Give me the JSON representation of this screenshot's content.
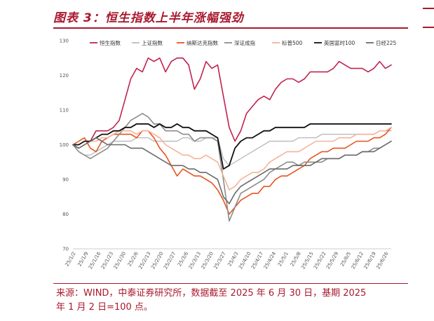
{
  "header": {
    "title": "图表 3：恒生指数上半年涨幅强劲"
  },
  "footer": {
    "source_line1": "来源：WIND，中泰证券研究所，数据截至 2025 年 6 月 30 日，基期 2025",
    "source_line2": "年 1 月 2 日=100 点。"
  },
  "chart_data": {
    "type": "line",
    "ylim": [
      70,
      130
    ],
    "yticks": [
      70,
      80,
      90,
      100,
      110,
      120,
      130
    ],
    "grid": false,
    "legend_position": "top",
    "x_tick_labels": [
      "25/1/2",
      "25/1/9",
      "25/1/16",
      "25/1/23",
      "25/1/30",
      "25/2/6",
      "25/2/13",
      "25/2/20",
      "25/2/27",
      "25/3/6",
      "25/3/13",
      "25/3/20",
      "25/3/27",
      "25/4/3",
      "25/4/10",
      "25/4/17",
      "25/4/24",
      "25/5/1",
      "25/5/8",
      "25/5/15",
      "25/5/22",
      "25/5/29",
      "25/6/5",
      "25/6/12",
      "25/6/19",
      "25/6/26"
    ],
    "series": [
      {
        "name": "恒生指数",
        "color": "#c0234e",
        "width": 1.6,
        "values": [
          100,
          99,
          100,
          101,
          104,
          104,
          104,
          105,
          107,
          113,
          119,
          122,
          121,
          125,
          124,
          125,
          121,
          124,
          125,
          125,
          123,
          116,
          119,
          124,
          122,
          123,
          114,
          105,
          101,
          104,
          109,
          111,
          113,
          114,
          113,
          116,
          118,
          119,
          119,
          118,
          119,
          121,
          121,
          121,
          121,
          122,
          124,
          123,
          122,
          122,
          122,
          121,
          122,
          124,
          122,
          123
        ]
      },
      {
        "name": "上证指数",
        "color": "#bdbdbd",
        "width": 1.4,
        "values": [
          100,
          98,
          97,
          97,
          98,
          99,
          100,
          101,
          101,
          101,
          101,
          102,
          102,
          102,
          101,
          101,
          101,
          101,
          101,
          102,
          102,
          101,
          101,
          102,
          102,
          102,
          96,
          94,
          95,
          96,
          97,
          98,
          99,
          100,
          101,
          101,
          101,
          101,
          101,
          102,
          102,
          102,
          102,
          103,
          103,
          103,
          103,
          103,
          103,
          103,
          103,
          103,
          103,
          104,
          104,
          104
        ]
      },
      {
        "name": "纳斯达克指数",
        "color": "#e8541e",
        "width": 1.6,
        "values": [
          100,
          101,
          102,
          99,
          98,
          101,
          102,
          103,
          103,
          103,
          103,
          102,
          104,
          104,
          102,
          99,
          97,
          94,
          91,
          93,
          92,
          91,
          91,
          90,
          89,
          87,
          84,
          80,
          82,
          84,
          85,
          86,
          86,
          88,
          88,
          90,
          91,
          91,
          92,
          93,
          94,
          96,
          97,
          98,
          98,
          99,
          99,
          99,
          100,
          101,
          101,
          101,
          102,
          102,
          103,
          105
        ]
      },
      {
        "name": "深证成指",
        "color": "#8c8c8c",
        "width": 1.6,
        "values": [
          100,
          98,
          97,
          96,
          97,
          98,
          99,
          101,
          103,
          105,
          107,
          108,
          109,
          108,
          106,
          106,
          104,
          104,
          104,
          103,
          103,
          101,
          102,
          102,
          102,
          101,
          90,
          78,
          82,
          86,
          87,
          88,
          89,
          90,
          92,
          93,
          94,
          95,
          95,
          94,
          95,
          95,
          95,
          95,
          96,
          96,
          96,
          97,
          97,
          97,
          98,
          98,
          99,
          99,
          100,
          101
        ]
      },
      {
        "name": "标普500",
        "color": "#f4b39a",
        "width": 1.6,
        "values": [
          100,
          100,
          101,
          101,
          101,
          102,
          102,
          103,
          104,
          104,
          104,
          103,
          104,
          104,
          103,
          102,
          100,
          99,
          98,
          97,
          97,
          96,
          96,
          97,
          96,
          95,
          91,
          87,
          88,
          90,
          91,
          92,
          92,
          93,
          95,
          96,
          97,
          98,
          98,
          98,
          99,
          100,
          101,
          101,
          101,
          101,
          102,
          102,
          102,
          103,
          103,
          103,
          103,
          104,
          104,
          105
        ]
      },
      {
        "name": "英国富时100",
        "color": "#111111",
        "width": 1.8,
        "values": [
          100,
          100,
          101,
          101,
          102,
          103,
          103,
          104,
          104,
          105,
          105,
          106,
          106,
          106,
          105,
          106,
          105,
          105,
          106,
          105,
          105,
          104,
          104,
          104,
          103,
          102,
          93,
          94,
          99,
          101,
          102,
          102,
          103,
          104,
          104,
          105,
          105,
          105,
          105,
          105,
          105,
          106,
          106,
          106,
          106,
          106,
          106,
          106,
          106,
          106,
          106,
          106,
          106,
          106,
          106,
          106
        ]
      },
      {
        "name": "日经225",
        "color": "#6b6b6b",
        "width": 1.6,
        "values": [
          100,
          99,
          100,
          101,
          102,
          101,
          100,
          100,
          100,
          100,
          99,
          99,
          99,
          98,
          97,
          96,
          95,
          94,
          94,
          94,
          93,
          93,
          92,
          92,
          91,
          90,
          85,
          83,
          86,
          88,
          89,
          90,
          91,
          92,
          93,
          93,
          93,
          93,
          94,
          94,
          94,
          94,
          95,
          96,
          96,
          96,
          96,
          97,
          97,
          97,
          98,
          98,
          98,
          99,
          100,
          101
        ]
      }
    ]
  }
}
